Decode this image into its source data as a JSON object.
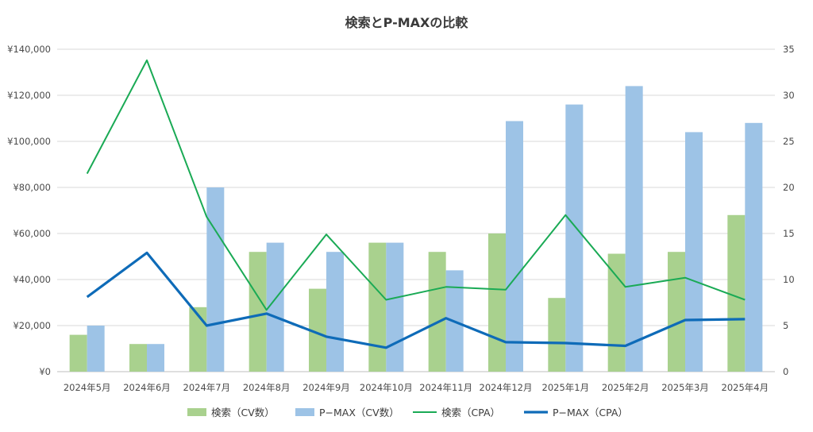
{
  "chart_data": {
    "type": "bar",
    "title": "検索とP-MAXの比較",
    "categories": [
      "2024年5月",
      "2024年6月",
      "2024年7月",
      "2024年8月",
      "2024年9月",
      "2024年10月",
      "2024年11月",
      "2024年12月",
      "2025年1月",
      "2025年2月",
      "2025年3月",
      "2025年4月"
    ],
    "series": [
      {
        "name": "検索（CV数）",
        "type": "bar",
        "axis": "left",
        "color": "#a9d18e",
        "values": [
          16000,
          12000,
          28000,
          52000,
          36000,
          56000,
          52000,
          60000,
          32000,
          51200,
          52000,
          68000
        ]
      },
      {
        "name": "P−MAX（CV数）",
        "type": "bar",
        "axis": "left",
        "color": "#9dc3e6",
        "values": [
          20000,
          12000,
          80000,
          56000,
          52000,
          56000,
          44000,
          108800,
          116000,
          124000,
          104000,
          108000
        ]
      },
      {
        "name": "検索（CPA）",
        "type": "line",
        "axis": "right",
        "color": "#1aaa55",
        "values": [
          21.5,
          33.8,
          16.8,
          6.7,
          14.9,
          7.8,
          9.2,
          8.9,
          17.0,
          9.2,
          10.2,
          7.8
        ]
      },
      {
        "name": "P−MAX（CPA）",
        "type": "line",
        "axis": "right",
        "color": "#0e6bb8",
        "values": [
          8.1,
          12.9,
          5.0,
          6.3,
          3.8,
          2.6,
          5.8,
          3.2,
          3.1,
          2.8,
          5.6,
          5.7
        ]
      }
    ],
    "y_left": {
      "min": 0,
      "max": 140000,
      "ticks": [
        "¥0",
        "¥20,000",
        "¥40,000",
        "¥60,000",
        "¥80,000",
        "¥100,000",
        "¥120,000",
        "¥140,000"
      ]
    },
    "y_right": {
      "min": 0,
      "max": 35,
      "ticks": [
        "0",
        "5",
        "10",
        "15",
        "20",
        "25",
        "30",
        "35"
      ]
    },
    "grid": true,
    "legend_position": "bottom"
  }
}
